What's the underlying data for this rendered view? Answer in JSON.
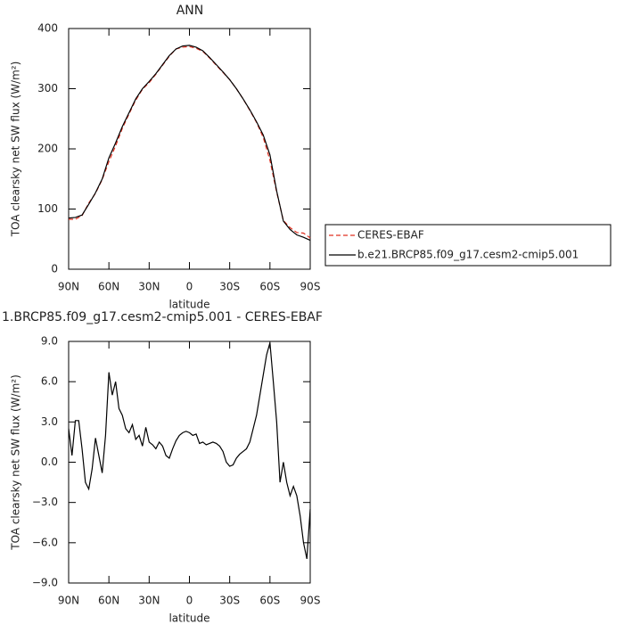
{
  "chart_data": [
    {
      "type": "line",
      "title": "ANN",
      "xlabel": "latitude",
      "ylabel": "TOA clearsky net SW flux (W/m²)",
      "x": [
        90,
        85,
        80,
        75,
        70,
        65,
        60,
        55,
        50,
        45,
        40,
        35,
        30,
        25,
        20,
        15,
        10,
        5,
        0,
        -5,
        -10,
        -15,
        -20,
        -25,
        -30,
        -35,
        -40,
        -45,
        -50,
        -55,
        -60,
        -65,
        -70,
        -75,
        -80,
        -85,
        -90
      ],
      "series": [
        {
          "name": "CERES-EBAF",
          "color": "#e03020",
          "dash": true,
          "values": [
            83,
            83,
            89,
            110,
            126,
            149,
            179,
            205,
            234,
            258,
            281,
            299,
            310,
            324,
            339,
            354,
            366,
            369,
            370,
            367,
            362,
            351,
            339,
            327,
            315,
            300,
            283,
            264,
            244,
            219,
            181,
            128,
            81,
            69,
            61,
            60,
            52
          ]
        },
        {
          "name": "b.e21.BRCP85.f09_g17.cesm2-cmip5.001",
          "color": "#000000",
          "dash": false,
          "values": [
            85,
            86,
            90,
            108,
            127,
            150,
            185,
            210,
            237,
            260,
            283,
            300,
            312,
            325,
            340,
            355,
            366,
            371,
            372,
            369,
            363,
            352,
            340,
            328,
            315,
            300,
            283,
            265,
            245,
            223,
            190,
            130,
            80,
            66,
            57,
            53,
            48
          ]
        }
      ],
      "xlim": [
        90,
        -90
      ],
      "xticks": [
        {
          "value": 90,
          "label": "90N"
        },
        {
          "value": 60,
          "label": "60N"
        },
        {
          "value": 30,
          "label": "30N"
        },
        0,
        {
          "value": -30,
          "label": "30S"
        },
        {
          "value": -60,
          "label": "60S"
        },
        {
          "value": -90,
          "label": "90S"
        }
      ],
      "ylim": [
        0,
        400
      ],
      "yticks": [
        0,
        100,
        200,
        300,
        400
      ],
      "legend": "right"
    },
    {
      "type": "line",
      "title": "1.BRCP85.f09_g17.cesm2-cmip5.001 - CERES-EBAF",
      "xlabel": "latitude",
      "ylabel": "TOA clearsky net SW flux (W/m²)",
      "x": [
        90,
        87.5,
        85,
        82.5,
        80,
        77.5,
        75,
        72.5,
        70,
        67.5,
        65,
        62.5,
        60,
        57.5,
        55,
        52.5,
        50,
        47.5,
        45,
        42.5,
        40,
        37.5,
        35,
        32.5,
        30,
        27.5,
        25,
        22.5,
        20,
        17.5,
        15,
        12.5,
        10,
        7.5,
        5,
        2.5,
        0,
        -2.5,
        -5,
        -7.5,
        -10,
        -12.5,
        -15,
        -17.5,
        -20,
        -22.5,
        -25,
        -27.5,
        -30,
        -32.5,
        -35,
        -37.5,
        -40,
        -42.5,
        -45,
        -47.5,
        -50,
        -52.5,
        -55,
        -57.5,
        -60,
        -62.5,
        -65,
        -67.5,
        -70,
        -72.5,
        -75,
        -77.5,
        -80,
        -82.5,
        -85,
        -87.5,
        -90
      ],
      "series": [
        {
          "color": "#000000",
          "dash": false,
          "values": [
            2.5,
            0.5,
            3.1,
            3.1,
            1.0,
            -1.5,
            -2.0,
            -0.5,
            1.8,
            0.5,
            -0.8,
            2.0,
            6.7,
            5.0,
            6.0,
            4.0,
            3.5,
            2.5,
            2.2,
            2.8,
            1.7,
            2.0,
            1.2,
            2.6,
            1.5,
            1.3,
            1.0,
            1.5,
            1.2,
            0.5,
            0.3,
            1.0,
            1.6,
            2.0,
            2.2,
            2.3,
            2.2,
            2.0,
            2.1,
            1.4,
            1.5,
            1.3,
            1.4,
            1.5,
            1.4,
            1.2,
            0.8,
            0.0,
            -0.3,
            -0.2,
            0.3,
            0.6,
            0.8,
            1.0,
            1.5,
            2.5,
            3.5,
            5.0,
            6.5,
            8.0,
            8.9,
            6.0,
            3.0,
            -1.5,
            0.0,
            -1.5,
            -2.5,
            -1.8,
            -2.5,
            -4.0,
            -6.0,
            -7.2,
            -3.5
          ]
        }
      ],
      "xlim": [
        90,
        -90
      ],
      "xticks": [
        {
          "value": 90,
          "label": "90N"
        },
        {
          "value": 60,
          "label": "60N"
        },
        {
          "value": 30,
          "label": "30N"
        },
        0,
        {
          "value": -30,
          "label": "30S"
        },
        {
          "value": -60,
          "label": "60S"
        },
        {
          "value": -90,
          "label": "90S"
        }
      ],
      "ylim": [
        -9,
        9
      ],
      "yticks": [
        {
          "value": -9,
          "label": "−9.0"
        },
        {
          "value": -6,
          "label": "−6.0"
        },
        {
          "value": -3,
          "label": "−3.0"
        },
        {
          "value": 0,
          "label": "0.0"
        },
        {
          "value": 3,
          "label": "3.0"
        },
        {
          "value": 6,
          "label": "6.0"
        },
        {
          "value": 9,
          "label": "9.0"
        }
      ]
    }
  ]
}
